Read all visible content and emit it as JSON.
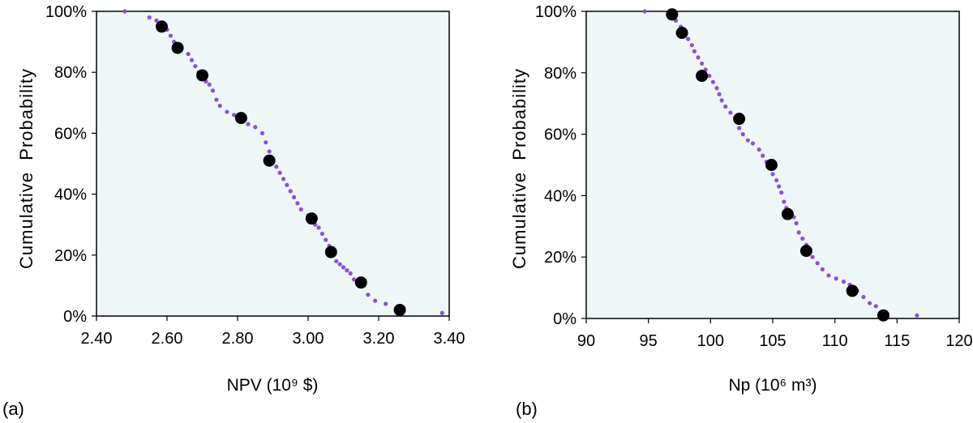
{
  "chart_data": [
    {
      "type": "scatter",
      "panel_label": "(a)",
      "xlabel": "NPV (10⁹ $)",
      "ylabel": "Cumulative  Probability",
      "xlim": [
        2.4,
        3.4
      ],
      "ylim": [
        0,
        100
      ],
      "x_ticks": [
        "2.40",
        "2.60",
        "2.80",
        "3.00",
        "3.20",
        "3.40"
      ],
      "y_ticks": [
        "0%",
        "20%",
        "40%",
        "60%",
        "80%",
        "100%"
      ],
      "background_color": "#eef6f8",
      "series": [
        {
          "marker": "small-dot",
          "color": "#8f4fd0",
          "points": [
            [
              2.48,
              100
            ],
            [
              2.55,
              98
            ],
            [
              2.57,
              97
            ],
            [
              2.59,
              95
            ],
            [
              2.6,
              94
            ],
            [
              2.61,
              92
            ],
            [
              2.62,
              90
            ],
            [
              2.63,
              89
            ],
            [
              2.64,
              88
            ],
            [
              2.66,
              86
            ],
            [
              2.67,
              84
            ],
            [
              2.68,
              82
            ],
            [
              2.69,
              80
            ],
            [
              2.7,
              79
            ],
            [
              2.71,
              77
            ],
            [
              2.72,
              76
            ],
            [
              2.73,
              74
            ],
            [
              2.74,
              71
            ],
            [
              2.75,
              69
            ],
            [
              2.77,
              67
            ],
            [
              2.79,
              66
            ],
            [
              2.81,
              64
            ],
            [
              2.83,
              63
            ],
            [
              2.85,
              62
            ],
            [
              2.87,
              60
            ],
            [
              2.88,
              57
            ],
            [
              2.89,
              54
            ],
            [
              2.9,
              51
            ],
            [
              2.91,
              49
            ],
            [
              2.92,
              47
            ],
            [
              2.93,
              45
            ],
            [
              2.94,
              43
            ],
            [
              2.95,
              41
            ],
            [
              2.96,
              39
            ],
            [
              2.97,
              37
            ],
            [
              2.98,
              35
            ],
            [
              3.0,
              33
            ],
            [
              3.01,
              31
            ],
            [
              3.02,
              30
            ],
            [
              3.03,
              29
            ],
            [
              3.04,
              27
            ],
            [
              3.05,
              25
            ],
            [
              3.06,
              23
            ],
            [
              3.07,
              20
            ],
            [
              3.08,
              18
            ],
            [
              3.09,
              17
            ],
            [
              3.1,
              16
            ],
            [
              3.11,
              15
            ],
            [
              3.12,
              14
            ],
            [
              3.13,
              12
            ],
            [
              3.15,
              10
            ],
            [
              3.17,
              7
            ],
            [
              3.19,
              5
            ],
            [
              3.22,
              4
            ],
            [
              3.38,
              1
            ]
          ]
        },
        {
          "marker": "large-dot",
          "color": "#000000",
          "points": [
            [
              2.585,
              95
            ],
            [
              2.63,
              88
            ],
            [
              2.7,
              79
            ],
            [
              2.81,
              65
            ],
            [
              2.89,
              51
            ],
            [
              3.01,
              32
            ],
            [
              3.065,
              21
            ],
            [
              3.15,
              11
            ],
            [
              3.26,
              2
            ]
          ]
        }
      ]
    },
    {
      "type": "scatter",
      "panel_label": "(b)",
      "xlabel": "Np (10⁶ m³)",
      "ylabel": "Cumulative  Probability",
      "xlim": [
        90,
        120
      ],
      "ylim": [
        0,
        100
      ],
      "x_ticks": [
        "90",
        "95",
        "100",
        "105",
        "110",
        "115",
        "120"
      ],
      "y_ticks": [
        "0%",
        "20%",
        "40%",
        "60%",
        "80%",
        "100%"
      ],
      "background_color": "#eef6f8",
      "series": [
        {
          "marker": "small-dot",
          "color": "#8f4fd0",
          "points": [
            [
              94.7,
              100
            ],
            [
              96.8,
              99
            ],
            [
              97.2,
              97
            ],
            [
              97.6,
              95
            ],
            [
              97.9,
              93
            ],
            [
              98.2,
              91
            ],
            [
              98.5,
              89
            ],
            [
              98.7,
              87
            ],
            [
              99.0,
              85
            ],
            [
              99.3,
              83
            ],
            [
              99.6,
              81
            ],
            [
              99.9,
              79
            ],
            [
              100.2,
              77
            ],
            [
              100.5,
              75
            ],
            [
              100.7,
              73
            ],
            [
              100.9,
              71
            ],
            [
              101.2,
              69
            ],
            [
              101.6,
              67
            ],
            [
              102.0,
              65
            ],
            [
              102.3,
              62
            ],
            [
              102.6,
              60
            ],
            [
              103.0,
              58
            ],
            [
              103.4,
              57
            ],
            [
              103.9,
              55
            ],
            [
              104.2,
              53
            ],
            [
              104.5,
              51
            ],
            [
              104.8,
              49
            ],
            [
              105.0,
              47
            ],
            [
              105.3,
              45
            ],
            [
              105.5,
              43
            ],
            [
              105.7,
              41
            ],
            [
              105.9,
              38
            ],
            [
              106.1,
              36
            ],
            [
              106.4,
              35
            ],
            [
              106.7,
              33
            ],
            [
              106.9,
              31
            ],
            [
              107.1,
              28
            ],
            [
              107.4,
              26
            ],
            [
              107.7,
              24
            ],
            [
              107.9,
              22
            ],
            [
              108.2,
              20
            ],
            [
              108.6,
              18
            ],
            [
              109.0,
              16
            ],
            [
              109.5,
              14
            ],
            [
              110.1,
              13
            ],
            [
              110.7,
              12
            ],
            [
              111.2,
              11
            ],
            [
              111.8,
              9
            ],
            [
              112.3,
              7
            ],
            [
              112.8,
              5
            ],
            [
              113.3,
              4
            ],
            [
              113.9,
              2
            ],
            [
              116.6,
              1
            ]
          ]
        },
        {
          "marker": "large-dot",
          "color": "#000000",
          "points": [
            [
              96.9,
              99
            ],
            [
              97.7,
              93
            ],
            [
              99.3,
              79
            ],
            [
              102.3,
              65
            ],
            [
              104.9,
              50
            ],
            [
              106.2,
              34
            ],
            [
              107.7,
              22
            ],
            [
              111.4,
              9
            ],
            [
              113.9,
              1
            ]
          ]
        }
      ]
    }
  ]
}
